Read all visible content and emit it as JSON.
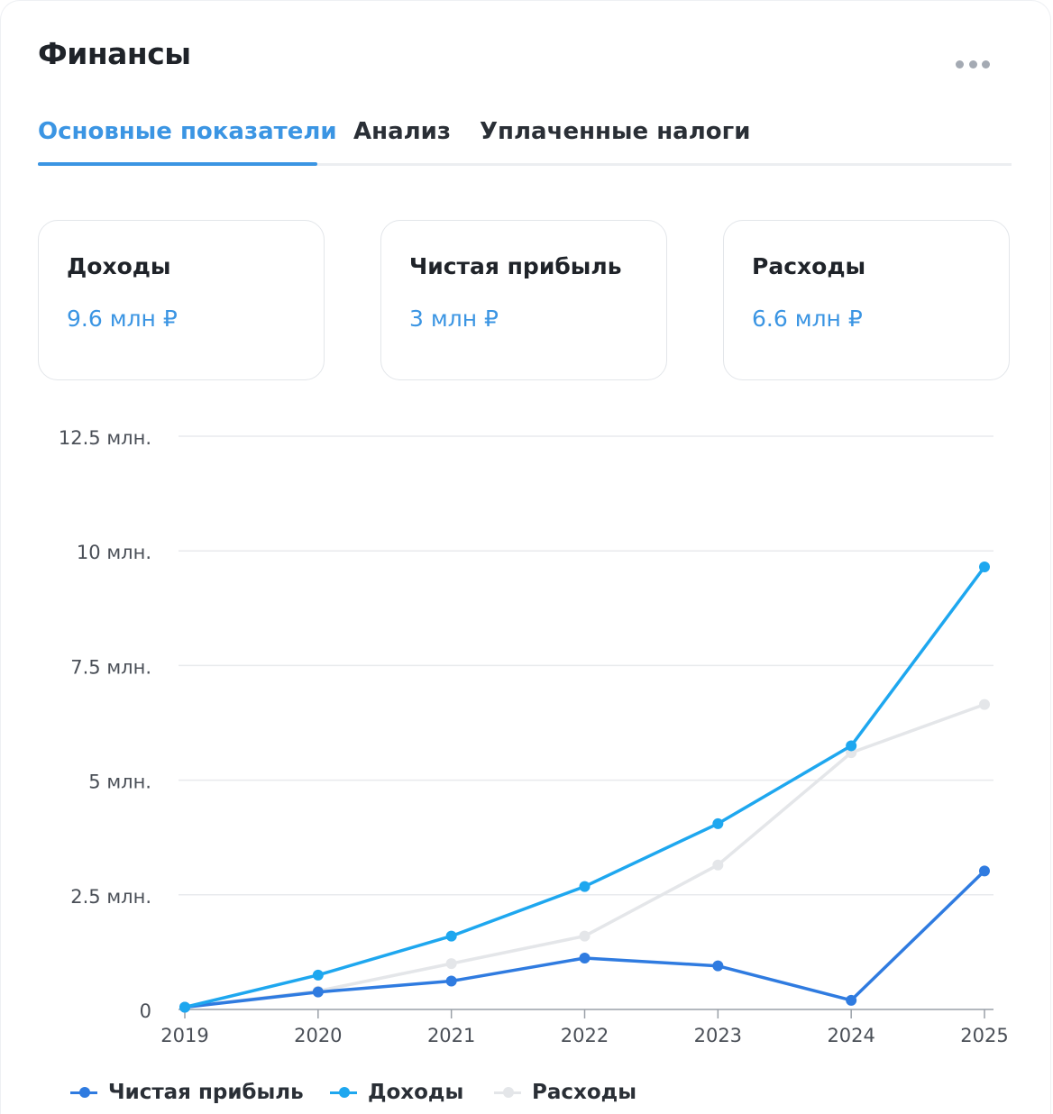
{
  "header": {
    "title": "Финансы",
    "more_icon": "more-horizontal-icon"
  },
  "tabs": [
    {
      "label": "Основные показатели",
      "active": true
    },
    {
      "label": "Анализ",
      "active": false
    },
    {
      "label": "Уплаченные налоги",
      "active": false
    }
  ],
  "summary_cards": [
    {
      "label": "Доходы",
      "value": "9.6 млн ₽"
    },
    {
      "label": "Чистая прибыль",
      "value": "3 млн ₽"
    },
    {
      "label": "Расходы",
      "value": "6.6 млн ₽"
    }
  ],
  "colors": {
    "accent": "#3b95e3",
    "net_profit": "#2f7be0",
    "income": "#1ea7ef",
    "expenses": "#e4e6e9"
  },
  "chart_data": {
    "type": "line",
    "x": [
      "2019",
      "2020",
      "2021",
      "2022",
      "2023",
      "2024",
      "2025"
    ],
    "ylim": [
      0,
      12500000
    ],
    "yticks": [
      0,
      2500000,
      5000000,
      7500000,
      10000000,
      12500000
    ],
    "ytick_labels": [
      "0",
      "2.5 млн.",
      "5 млн.",
      "7.5 млн.",
      "10 млн.",
      "12.5 млн."
    ],
    "grid": true,
    "legend": "bottom",
    "series": [
      {
        "name": "Чистая прибыль",
        "color": "#2f7be0",
        "values": [
          50000,
          380000,
          620000,
          1120000,
          950000,
          200000,
          3020000
        ]
      },
      {
        "name": "Доходы",
        "color": "#1ea7ef",
        "values": [
          50000,
          750000,
          1600000,
          2680000,
          4050000,
          5750000,
          9650000
        ]
      },
      {
        "name": "Расходы",
        "color": "#e4e6e9",
        "values": [
          50000,
          400000,
          1000000,
          1600000,
          3150000,
          5600000,
          6650000
        ]
      }
    ]
  }
}
